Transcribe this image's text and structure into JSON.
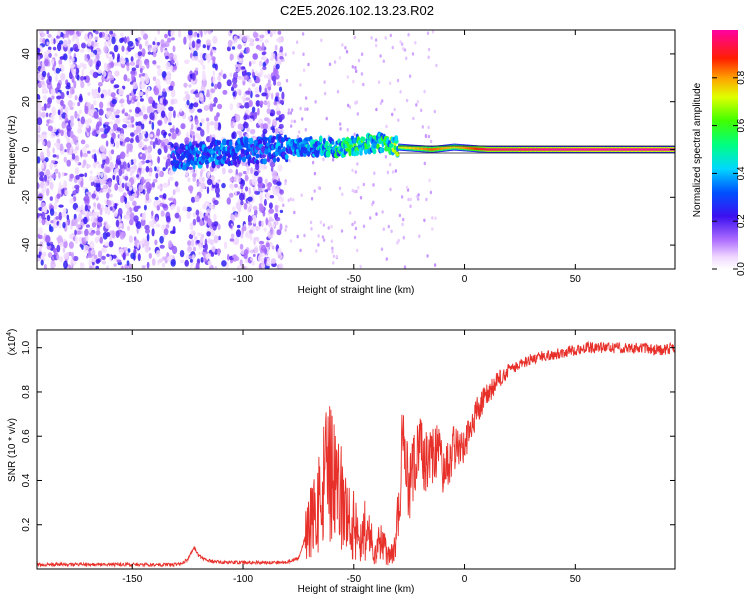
{
  "title": "C2E5.2026.102.13.23.R02",
  "colors": {
    "snr_line": "#e8302a",
    "axis": "#000000",
    "background": "#ffffff"
  },
  "chart_data": [
    {
      "type": "heatmap",
      "name": "spectrogram",
      "xlabel": "Height of straight line (km)",
      "ylabel": "Frequency (Hz)",
      "xlim": [
        -193,
        95
      ],
      "ylim": [
        -50,
        50
      ],
      "xticks": [
        -150,
        -100,
        -50,
        0,
        50
      ],
      "yticks": [
        -40,
        -20,
        0,
        20,
        40
      ],
      "colorbar": {
        "label": "Normalized spectral amplitude",
        "range": [
          0.0,
          1.0
        ],
        "ticks": [
          0.0,
          0.2,
          0.4,
          0.6,
          0.8
        ],
        "colormap": "rainbow (magenta-white to blue, cyan, green, yellow, red)"
      },
      "description": "Broadband noise (amplitude ~0.05-0.3) from -193 to -85 km with gaps near -128 and -108 km; energy concentrates near 0 Hz from -130 km; narrow-band peak at 0 Hz (amplitude ~1.0) from ~-30 km to 95 km",
      "ridge": [
        {
          "x": -130,
          "f": -3,
          "amp": 0.35
        },
        {
          "x": -115,
          "f": -2,
          "amp": 0.4
        },
        {
          "x": -90,
          "f": 0,
          "amp": 0.35
        },
        {
          "x": -70,
          "f": 1,
          "amp": 0.45
        },
        {
          "x": -55,
          "f": 1,
          "amp": 0.55
        },
        {
          "x": -45,
          "f": 2,
          "amp": 0.6
        },
        {
          "x": -38,
          "f": 3,
          "amp": 0.55
        },
        {
          "x": -30,
          "f": 1,
          "amp": 0.7
        },
        {
          "x": -15,
          "f": 0,
          "amp": 0.85
        },
        {
          "x": -5,
          "f": 1,
          "amp": 0.75
        },
        {
          "x": 10,
          "f": 0,
          "amp": 0.95
        },
        {
          "x": 50,
          "f": 0,
          "amp": 1.0
        },
        {
          "x": 95,
          "f": 0,
          "amp": 1.0
        }
      ]
    },
    {
      "type": "line",
      "name": "snr",
      "xlabel": "Height of straight line (km)",
      "ylabel": "SNR (10 * v/v)",
      "y_multiplier": "(x10^4)",
      "y_multiplier_base": "(x10",
      "y_multiplier_exp": "4",
      "y_multiplier_close": ")",
      "xlim": [
        -193,
        95
      ],
      "ylim": [
        0,
        1.08
      ],
      "xticks": [
        -150,
        -100,
        -50,
        0,
        50
      ],
      "yticks": [
        0.2,
        0.4,
        0.6,
        0.8,
        1.0
      ],
      "series": [
        {
          "name": "SNR",
          "color": "#e8302a",
          "x": [
            -193,
            -170,
            -150,
            -130,
            -125,
            -122,
            -120,
            -117,
            -110,
            -100,
            -90,
            -80,
            -75,
            -70,
            -65,
            -62,
            -58,
            -55,
            -52,
            -50,
            -47,
            -45,
            -42,
            -40,
            -38,
            -35,
            -32,
            -30,
            -28,
            -25,
            -22,
            -20,
            -18,
            -15,
            -12,
            -10,
            -8,
            -5,
            -2,
            0,
            3,
            5,
            8,
            10,
            15,
            20,
            25,
            30,
            35,
            40,
            45,
            50,
            55,
            60,
            65,
            70,
            75,
            80,
            85,
            90,
            95
          ],
          "y": [
            0.02,
            0.02,
            0.02,
            0.02,
            0.04,
            0.1,
            0.06,
            0.04,
            0.03,
            0.03,
            0.03,
            0.03,
            0.05,
            0.2,
            0.3,
            0.45,
            0.35,
            0.3,
            0.22,
            0.2,
            0.15,
            0.18,
            0.12,
            0.1,
            0.12,
            0.08,
            0.07,
            0.2,
            0.6,
            0.35,
            0.5,
            0.55,
            0.48,
            0.5,
            0.55,
            0.45,
            0.45,
            0.55,
            0.55,
            0.55,
            0.65,
            0.7,
            0.75,
            0.78,
            0.85,
            0.9,
            0.92,
            0.95,
            0.96,
            0.97,
            0.98,
            0.99,
            1.0,
            1.0,
            1.0,
            1.0,
            1.0,
            1.0,
            0.99,
            0.99,
            1.0
          ]
        }
      ]
    }
  ]
}
